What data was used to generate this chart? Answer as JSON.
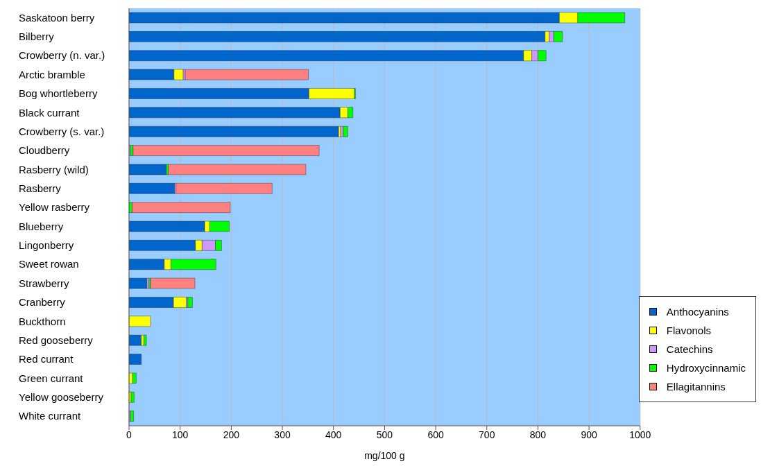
{
  "chart_data": {
    "type": "bar",
    "orientation": "horizontal",
    "stacked": true,
    "xlabel": "mg/100 g",
    "categories": [
      "Saskatoon berry",
      "Bilberry",
      "Crowberry (n. var.)",
      "Arctic bramble",
      "Bog whortleberry",
      "Black currant",
      "Crowberry (s. var.)",
      "Cloudberry",
      "Rasberry (wild)",
      "Rasberry",
      "Yellow rasberry",
      "Blueberry",
      "Lingonberry",
      "Sweet rowan",
      "Strawberry",
      "Cranberry",
      "Buckthorn",
      "Red gooseberry",
      "Red currant",
      "Green currant",
      "Yellow gooseberry",
      "White currant"
    ],
    "series": [
      {
        "name": "Anthocyanins",
        "color": "#0066cc",
        "values": [
          842,
          814,
          772,
          88,
          352,
          413,
          410,
          0,
          73,
          89,
          0,
          148,
          130,
          69,
          35,
          87,
          0,
          24,
          24,
          0,
          0,
          0
        ]
      },
      {
        "name": "Flavonols",
        "color": "#ffff00",
        "values": [
          36,
          8,
          16,
          18,
          89,
          15,
          4,
          0,
          0,
          0,
          0,
          10,
          13,
          13,
          0,
          25,
          42,
          5,
          0,
          7,
          4,
          0
        ]
      },
      {
        "name": "Catechins",
        "color": "#cc99ff",
        "values": [
          0,
          9,
          12,
          4,
          0,
          0,
          5,
          3,
          0,
          3,
          0,
          0,
          26,
          0,
          4,
          3,
          0,
          0,
          0,
          0,
          0,
          3
        ]
      },
      {
        "name": "Hydroxycinnamic",
        "color": "#00ff00",
        "values": [
          92,
          17,
          16,
          0,
          2,
          10,
          9,
          5,
          4,
          0,
          6,
          38,
          12,
          88,
          3,
          9,
          0,
          5,
          0,
          7,
          6,
          6
        ]
      },
      {
        "name": "Ellagitannins",
        "color": "#ff8080",
        "values": [
          0,
          0,
          0,
          241,
          0,
          0,
          0,
          364,
          269,
          188,
          192,
          0,
          0,
          0,
          87,
          0,
          0,
          0,
          0,
          0,
          0,
          0
        ]
      }
    ],
    "xlim": [
      0,
      1000
    ],
    "xticks": [
      0,
      100,
      200,
      300,
      400,
      500,
      600,
      700,
      800,
      900,
      1000
    ],
    "grid": "x",
    "legend": "bottom right"
  }
}
